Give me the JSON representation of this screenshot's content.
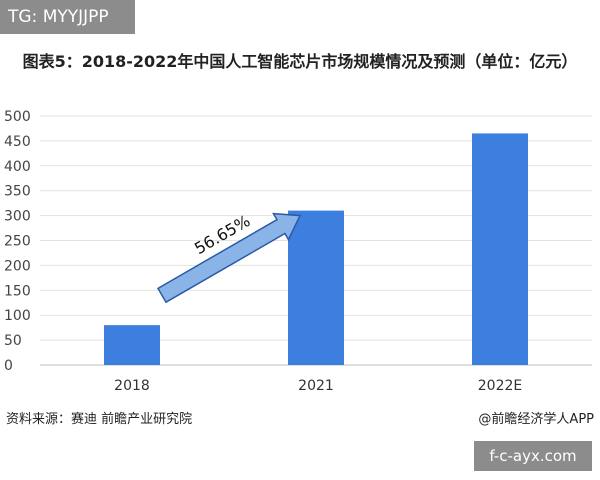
{
  "header": {
    "tg_label": "TG: MYYJJPP"
  },
  "chart_data": {
    "type": "bar",
    "title": "图表5：2018-2022年中国人工智能芯片市场规模情况及预测（单位：亿元）",
    "categories": [
      "2018",
      "2021",
      "2022E"
    ],
    "values": [
      80,
      310,
      465
    ],
    "ylim": [
      0,
      500
    ],
    "yticks": [
      0,
      50,
      100,
      150,
      200,
      250,
      300,
      350,
      400,
      450,
      500
    ],
    "grid": true,
    "bar_color": "#3d7fde",
    "annotation": {
      "text": "56.65%",
      "color": "#8ab4e8"
    }
  },
  "footer": {
    "source": "资料来源：赛迪 前瞻产业研究院",
    "credit": "@前瞻经济学人APP",
    "watermark": "f-c-ayx.com"
  }
}
